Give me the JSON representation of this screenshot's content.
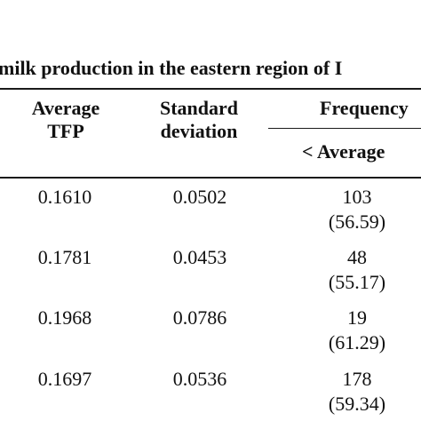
{
  "caption": "milk production in the eastern region of I",
  "headers": {
    "average_tfp": [
      "Average",
      "TFP"
    ],
    "standard_deviation": [
      "Standard",
      "deviation"
    ],
    "frequency": "Frequency",
    "below_average": "< Average"
  },
  "rows": [
    {
      "average_tfp": "0.1610",
      "standard_deviation": "0.0502",
      "freq_count": "103",
      "freq_pct": "(56.59)"
    },
    {
      "average_tfp": "0.1781",
      "standard_deviation": "0.0453",
      "freq_count": "48",
      "freq_pct": "(55.17)"
    },
    {
      "average_tfp": "0.1968",
      "standard_deviation": "0.0786",
      "freq_count": "19",
      "freq_pct": "(61.29)"
    },
    {
      "average_tfp": "0.1697",
      "standard_deviation": "0.0536",
      "freq_count": "178",
      "freq_pct": "(59.34)"
    }
  ]
}
